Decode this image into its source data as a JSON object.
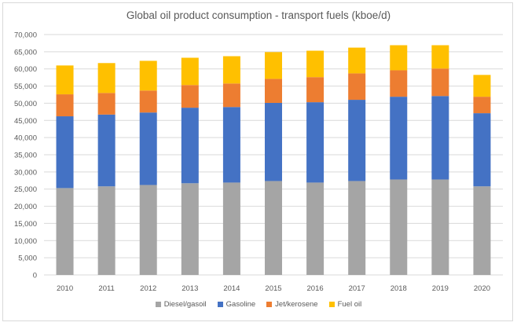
{
  "chart_data": {
    "type": "bar",
    "stacked": true,
    "title": "Global oil product consumption - transport fuels (kboe/d)",
    "xlabel": "",
    "ylabel": "",
    "ylim": [
      0,
      70000
    ],
    "yticks": [
      "0",
      "5,000",
      "10,000",
      "15,000",
      "20,000",
      "25,000",
      "30,000",
      "35,000",
      "40,000",
      "45,000",
      "50,000",
      "55,000",
      "60,000",
      "65,000",
      "70,000"
    ],
    "grid": true,
    "legend_position": "bottom",
    "categories": [
      "2010",
      "2011",
      "2012",
      "2013",
      "2014",
      "2015",
      "2016",
      "2017",
      "2018",
      "2019",
      "2020"
    ],
    "series": [
      {
        "name": "Diesel/gasoil",
        "color": "#a5a5a5",
        "values": [
          25300,
          25800,
          26200,
          26700,
          26900,
          27350,
          26900,
          27350,
          27800,
          27800,
          25800
        ]
      },
      {
        "name": "Gasoline",
        "color": "#4472c4",
        "values": [
          20900,
          20900,
          21100,
          22000,
          22000,
          22750,
          23400,
          23650,
          24100,
          24300,
          21300
        ]
      },
      {
        "name": "Jet/kerosene",
        "color": "#ed7d31",
        "values": [
          6400,
          6300,
          6400,
          6600,
          6850,
          7000,
          7300,
          7700,
          7700,
          8000,
          4800
        ]
      },
      {
        "name": "Fuel oil",
        "color": "#ffc000",
        "values": [
          8400,
          8700,
          8650,
          7950,
          7950,
          7800,
          7700,
          7500,
          7300,
          6800,
          6350
        ]
      }
    ]
  }
}
